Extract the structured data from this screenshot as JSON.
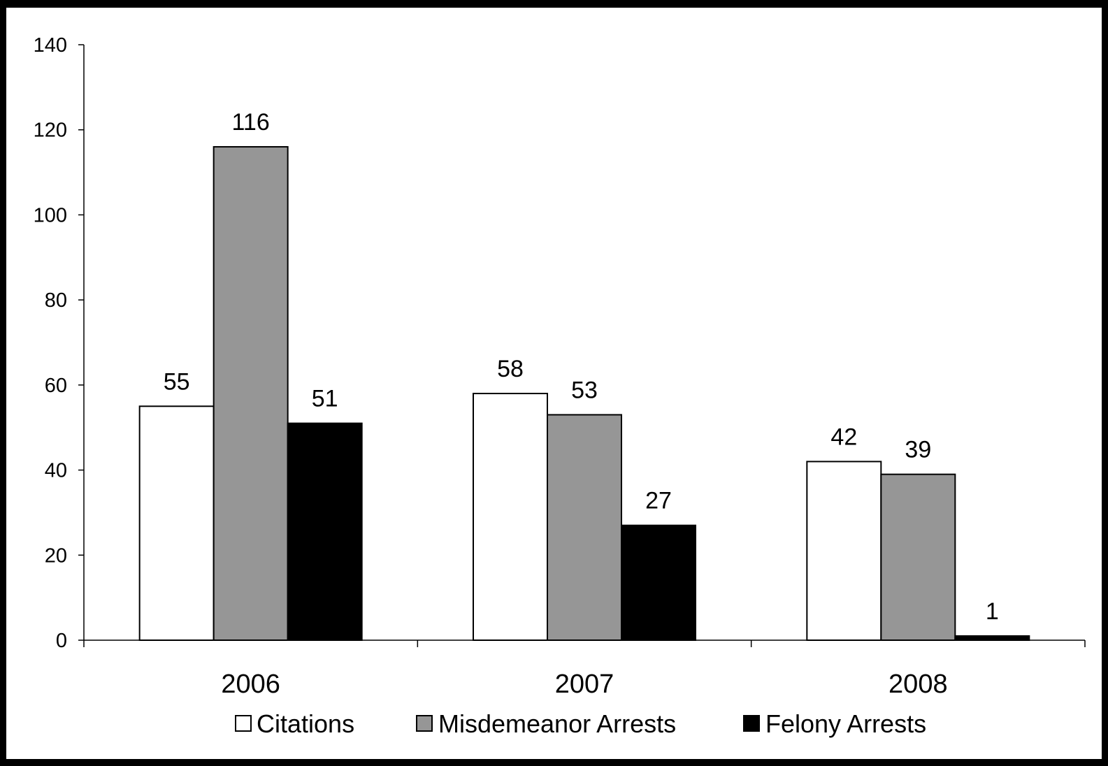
{
  "chart_data": {
    "type": "bar",
    "title": "",
    "xlabel": "",
    "ylabel": "",
    "categories": [
      "2006",
      "2007",
      "2008"
    ],
    "series": [
      {
        "name": "Citations",
        "values": [
          55,
          58,
          42
        ],
        "color": "#ffffff"
      },
      {
        "name": "Misdemeanor Arrests",
        "values": [
          116,
          53,
          39
        ],
        "color": "#969696"
      },
      {
        "name": "Felony Arrests",
        "values": [
          51,
          27,
          1
        ],
        "color": "#000000"
      }
    ],
    "ylim": [
      0,
      140
    ],
    "yticks": [
      0,
      20,
      40,
      60,
      80,
      100,
      120,
      140
    ],
    "grid": false,
    "legend": "bottom",
    "data_labels": true
  }
}
